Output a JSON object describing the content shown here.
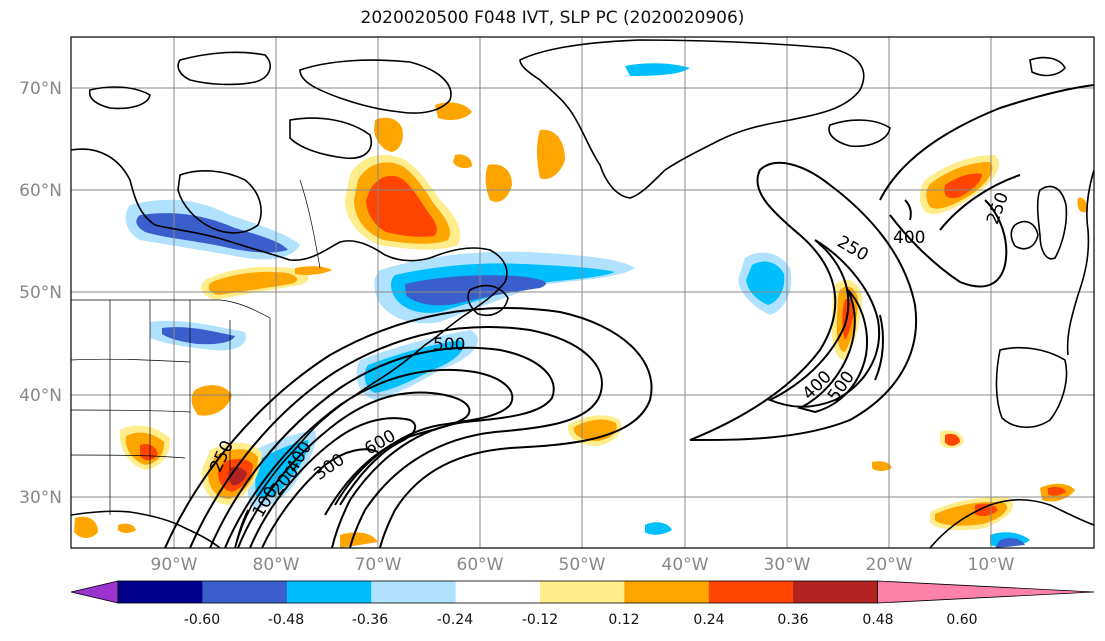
{
  "title": "2020020500 F048 IVT, SLP PC (2020020906)",
  "lat_labels": [
    "70°N",
    "60°N",
    "50°N",
    "40°N",
    "30°N"
  ],
  "lon_labels": [
    "90°W",
    "80°W",
    "70°W",
    "60°W",
    "50°W",
    "40°W",
    "30°W",
    "20°W",
    "10°W"
  ],
  "colorbar": {
    "tick_labels": [
      "-0.60",
      "-0.48",
      "-0.36",
      "-0.24",
      "-0.12",
      "0.12",
      "0.24",
      "0.36",
      "0.48",
      "0.60"
    ],
    "colors": [
      "#9a32cd",
      "#00008b",
      "#3a5fcd",
      "#00bfff",
      "#b0e2ff",
      "#ffffff",
      "#ffec8b",
      "#ffa500",
      "#ff4500",
      "#b22222",
      "#ff82ab"
    ]
  },
  "contour_labels": [
    "250",
    "400",
    "250",
    "400",
    "500",
    "500",
    "400",
    "600",
    "300",
    "200",
    "100",
    "250"
  ],
  "colors": {
    "grid": "#888888",
    "coast": "#000000",
    "neg_light": "#b0e2ff",
    "neg_mid": "#00bfff",
    "neg_strong": "#3a5fcd",
    "pos_light": "#ffec8b",
    "pos_mid": "#ffa500",
    "pos_strong": "#ff4500",
    "pos_max": "#b22222"
  }
}
